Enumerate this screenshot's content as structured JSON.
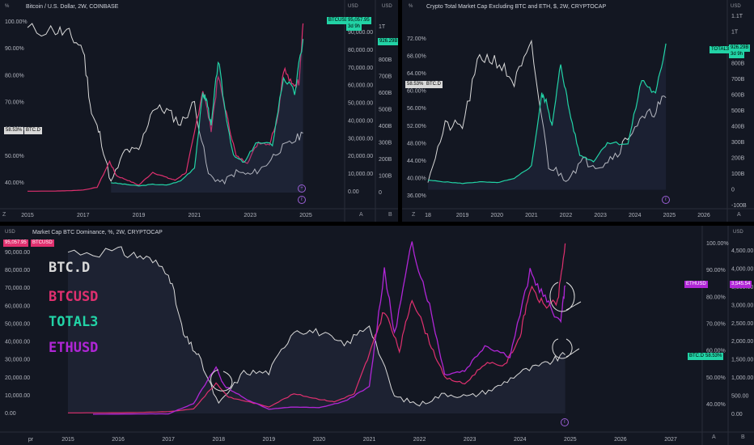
{
  "panels": {
    "top_left": {
      "title": "Bitcoin / U.S. Dollar, 2W, COINBASE",
      "left_unit": "%",
      "right_unit_1": "USD",
      "right_unit_2": "USD",
      "left_axis": [
        "100.00%",
        "90.00%",
        "80.00%",
        "70.00%",
        "60.00%",
        "50.00%",
        "40.00%"
      ],
      "mid_axis": [
        "90,000.00",
        "80,000.00",
        "70,000.00",
        "60,000.00",
        "50,000.00",
        "40,000.00",
        "30,000.00",
        "20,000.00",
        "10,000.00",
        "0.00"
      ],
      "right_axis": [
        "1T",
        "800B",
        "700B",
        "600B",
        "500B",
        "400B",
        "300B",
        "200B",
        "100B",
        "0"
      ],
      "dates": [
        "2015",
        "2017",
        "2019",
        "2021",
        "2023",
        "2025"
      ],
      "tags": {
        "btcusd_label": "BTCUSD",
        "btcusd_value": "95,057.95",
        "btcusd_sub": "3d 9h",
        "total3_value": "926.29B",
        "btcd_pct": "58.53%",
        "btcd_label": "BTC.D"
      },
      "corner_left": "Z",
      "corner_right_1": "A",
      "corner_right_2": "B"
    },
    "top_right": {
      "title": "Crypto Total Market Cap Excluding BTC and ETH, $, 2W, CRYPTOCAP",
      "left_unit": "%",
      "right_unit": "USD",
      "left_axis": [
        "72.00%",
        "68.00%",
        "64.00%",
        "60.00%",
        "56.00%",
        "52.00%",
        "48.00%",
        "44.00%",
        "40.00%",
        "36.00%"
      ],
      "right_axis": [
        "1.1T",
        "1T",
        "900B",
        "800B",
        "700B",
        "600B",
        "500B",
        "400B",
        "300B",
        "200B",
        "100B",
        "0",
        "-100B"
      ],
      "dates": [
        "18",
        "2019",
        "2020",
        "2021",
        "2022",
        "2023",
        "2024",
        "2025",
        "2026"
      ],
      "tags": {
        "total3_label": "TOTAL3",
        "total3_value": "926.29B",
        "total3_sub": "3d 9h",
        "btcd_pct": "58.53%",
        "btcd_label": "BTC.D"
      },
      "corner_left": "Z",
      "corner_right": "A"
    },
    "bottom": {
      "title": "Market Cap BTC Dominance, %, 2W, CRYPTOCAP",
      "left_unit": "USD",
      "right_unit": "USD",
      "left_axis": [
        "90,000.00",
        "80,000.00",
        "70,000.00",
        "60,000.00",
        "50,000.00",
        "40,000.00",
        "30,000.00",
        "20,000.00",
        "10,000.00",
        "0.00"
      ],
      "pct_axis": [
        "100.00%",
        "90.00%",
        "80.00%",
        "70.00%",
        "60.00%",
        "50.00%",
        "40.00%"
      ],
      "right_axis": [
        "4,500.00",
        "4,000.00",
        "3,500.00",
        "3,000.00",
        "2,500.00",
        "2,000.00",
        "1,500.00",
        "1,000.00",
        "500.00",
        "0.00"
      ],
      "dates": [
        "pr",
        "2015",
        "2016",
        "2017",
        "2018",
        "2019",
        "2020",
        "2021",
        "2022",
        "2023",
        "2024",
        "2025",
        "2026",
        "2027"
      ],
      "tags": {
        "btcusd_value": "95,057.95",
        "btcusd_label": "BTCUSD",
        "ethusd_label": "ETHUSD",
        "ethusd_value": "3,545.54",
        "btcd_label": "BTC.D",
        "btcd_pct": "58.53%"
      },
      "legend": [
        "BTC.D",
        "BTCUSD",
        "TOTAL3",
        "ETHUSD"
      ],
      "corner_left": "Z",
      "corner_right_1": "A",
      "corner_right_2": "B"
    }
  },
  "colors": {
    "btcd": "#d9d9d9",
    "btcusd": "#e0306f",
    "total3": "#22d3a6",
    "ethusd": "#b026d6",
    "background": "#131722",
    "grid": "#1e2230"
  },
  "chart_data": [
    {
      "type": "line",
      "title": "Bitcoin / U.S. Dollar, 2W, COINBASE",
      "series": [
        {
          "name": "BTC.D",
          "x": [
            2015.0,
            2016.0,
            2016.5,
            2017.0,
            2017.3,
            2017.6,
            2018.0,
            2018.5,
            2019.0,
            2019.5,
            2020.0,
            2020.5,
            2021.0,
            2021.5,
            2022.0,
            2022.5,
            2023.0,
            2023.5,
            2024.0,
            2024.5,
            2024.9
          ],
          "y": [
            97,
            97,
            95,
            90,
            66,
            58,
            40,
            52,
            52,
            68,
            67,
            62,
            70,
            43,
            40,
            44,
            43,
            46,
            52,
            55,
            58.53
          ]
        },
        {
          "name": "BTCUSD",
          "x": [
            2015.0,
            2016.0,
            2016.5,
            2017.0,
            2017.5,
            2017.95,
            2018.2,
            2018.6,
            2019.0,
            2019.5,
            2020.0,
            2020.3,
            2020.7,
            2021.0,
            2021.3,
            2021.6,
            2021.85,
            2022.2,
            2022.5,
            2022.9,
            2023.3,
            2023.7,
            2024.0,
            2024.2,
            2024.5,
            2024.75,
            2024.9
          ],
          "y": [
            300,
            400,
            600,
            1000,
            2500,
            17000,
            9000,
            6500,
            3700,
            11000,
            8000,
            6500,
            11000,
            33000,
            58000,
            35000,
            65000,
            40000,
            20000,
            16500,
            28000,
            27000,
            43000,
            70000,
            60000,
            62000,
            95058
          ]
        }
      ]
    },
    {
      "type": "line",
      "title": "Crypto Total Market Cap Excluding BTC and ETH, $, 2W, CRYPTOCAP",
      "series": [
        {
          "name": "TOTAL3",
          "unit": "USD",
          "x": [
            2018.0,
            2018.5,
            2019.0,
            2019.5,
            2020.0,
            2020.5,
            2021.0,
            2021.3,
            2021.45,
            2021.6,
            2021.85,
            2022.1,
            2022.4,
            2022.8,
            2023.2,
            2023.8,
            2024.2,
            2024.6,
            2024.9
          ],
          "y": [
            60,
            50,
            40,
            50,
            45,
            70,
            150,
            600,
            550,
            400,
            800,
            500,
            220,
            180,
            300,
            290,
            700,
            600,
            926
          ]
        }
      ]
    },
    {
      "type": "line",
      "title": "Market Cap BTC Dominance, %, 2W, CRYPTOCAP",
      "series": [
        {
          "name": "ETHUSD",
          "unit": "USD",
          "x": [
            2015.5,
            2016.5,
            2017.0,
            2017.5,
            2017.95,
            2018.1,
            2018.5,
            2019.0,
            2019.5,
            2020.0,
            2020.5,
            2021.0,
            2021.3,
            2021.5,
            2021.85,
            2022.2,
            2022.5,
            2022.9,
            2023.3,
            2023.8,
            2024.2,
            2024.5,
            2024.8,
            2024.9
          ],
          "y": [
            1,
            10,
            10,
            300,
            1300,
            800,
            450,
            140,
            200,
            180,
            350,
            750,
            4000,
            2200,
            4700,
            3000,
            1100,
            1200,
            1900,
            1600,
            3900,
            3200,
            2500,
            3546
          ]
        }
      ]
    }
  ]
}
